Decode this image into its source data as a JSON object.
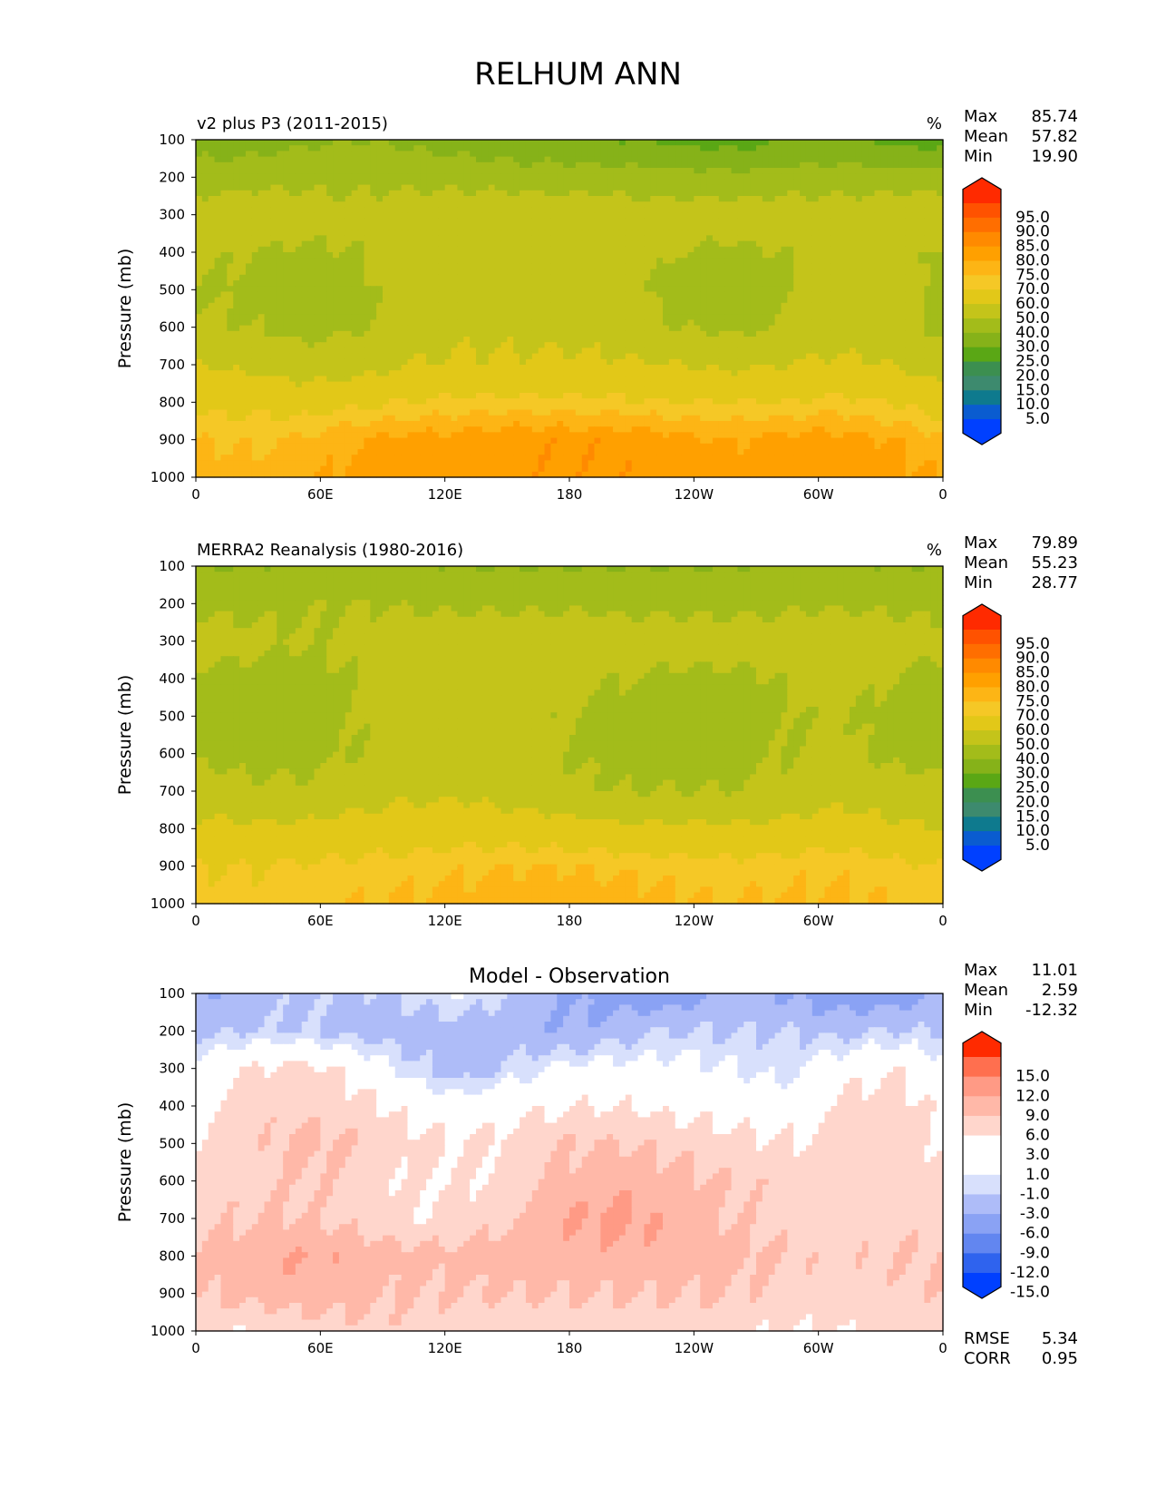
{
  "figure": {
    "title": "RELHUM ANN"
  },
  "chart_data": [
    {
      "type": "heatmap",
      "panel_title": "v2 plus P3 (2011-2015)",
      "units": "%",
      "stats": [
        {
          "label": "Max",
          "value": "85.74"
        },
        {
          "label": "Mean",
          "value": "57.82"
        },
        {
          "label": "Min",
          "value": "19.90"
        }
      ],
      "ylabel": "Pressure (mb)",
      "yticks": [
        "100",
        "200",
        "300",
        "400",
        "500",
        "600",
        "700",
        "800",
        "900",
        "1000"
      ],
      "ylim": [
        100,
        1000
      ],
      "xticks": [
        "0",
        "60E",
        "120E",
        "180",
        "120W",
        "60W",
        "0"
      ],
      "xlim": [
        0,
        360
      ],
      "colorbar": {
        "labels": [
          "95.0",
          "90.0",
          "85.0",
          "80.0",
          "75.0",
          "70.0",
          "60.0",
          "50.0",
          "40.0",
          "30.0",
          "25.0",
          "20.0",
          "15.0",
          "10.0",
          "5.0"
        ],
        "colors": [
          "#ff2a00",
          "#ff5200",
          "#ff6e00",
          "#ff8a00",
          "#ffa000",
          "#fdb515",
          "#f5c826",
          "#e2c818",
          "#c4c41a",
          "#a3bc1a",
          "#86b219",
          "#5aa715",
          "#3c8f50",
          "#3d8a6e",
          "#0e7a8e",
          "#0a5cd0",
          "#0040ff"
        ]
      },
      "field": {
        "description": "Zonal cross-section of relative humidity; dry band near 100-200 mb, moist 800-1000 mb",
        "rows_pressure": [
          100,
          200,
          300,
          400,
          500,
          600,
          700,
          800,
          900,
          1000
        ],
        "rows_values": [
          [
            35,
            35,
            38,
            40,
            38,
            35,
            33,
            32,
            30,
            28,
            25,
            30,
            32,
            28,
            25
          ],
          [
            45,
            46,
            47,
            48,
            47,
            46,
            45,
            45,
            44,
            44,
            43,
            44,
            45,
            44,
            45
          ],
          [
            55,
            58,
            55,
            52,
            56,
            58,
            58,
            57,
            56,
            55,
            55,
            56,
            55,
            57,
            58
          ],
          [
            52,
            50,
            48,
            50,
            57,
            58,
            58,
            57,
            56,
            50,
            48,
            50,
            55,
            56,
            48
          ],
          [
            50,
            48,
            47,
            47,
            55,
            58,
            58,
            57,
            55,
            45,
            44,
            48,
            55,
            55,
            46
          ],
          [
            52,
            50,
            47,
            49,
            56,
            58,
            58,
            57,
            56,
            50,
            48,
            50,
            56,
            55,
            48
          ],
          [
            60,
            58,
            55,
            56,
            60,
            61,
            61,
            62,
            61,
            60,
            58,
            60,
            62,
            60,
            55
          ],
          [
            68,
            68,
            66,
            68,
            70,
            72,
            72,
            72,
            71,
            70,
            70,
            70,
            72,
            70,
            66
          ],
          [
            75,
            74,
            76,
            80,
            82,
            82,
            84,
            84,
            84,
            82,
            80,
            82,
            82,
            80,
            76
          ],
          [
            78,
            77,
            78,
            82,
            83,
            83,
            84,
            84,
            84,
            83,
            82,
            83,
            83,
            82,
            80
          ]
        ]
      }
    },
    {
      "type": "heatmap",
      "panel_title": "MERRA2 Reanalysis (1980-2016)",
      "units": "%",
      "stats": [
        {
          "label": "Max",
          "value": "79.89"
        },
        {
          "label": "Mean",
          "value": "55.23"
        },
        {
          "label": "Min",
          "value": "28.77"
        }
      ],
      "ylabel": "Pressure (mb)",
      "yticks": [
        "100",
        "200",
        "300",
        "400",
        "500",
        "600",
        "700",
        "800",
        "900",
        "1000"
      ],
      "ylim": [
        100,
        1000
      ],
      "xticks": [
        "0",
        "60E",
        "120E",
        "180",
        "120W",
        "60W",
        "0"
      ],
      "xlim": [
        0,
        360
      ],
      "colorbar": {
        "labels": [
          "95.0",
          "90.0",
          "85.0",
          "80.0",
          "75.0",
          "70.0",
          "60.0",
          "50.0",
          "40.0",
          "30.0",
          "25.0",
          "20.0",
          "15.0",
          "10.0",
          "5.0"
        ],
        "colors": [
          "#ff2a00",
          "#ff5200",
          "#ff6e00",
          "#ff8a00",
          "#ffa000",
          "#fdb515",
          "#f5c826",
          "#e2c818",
          "#c4c41a",
          "#a3bc1a",
          "#86b219",
          "#5aa715",
          "#3c8f50",
          "#3d8a6e",
          "#0e7a8e",
          "#0a5cd0",
          "#0040ff"
        ]
      },
      "field": {
        "description": "Reanalysis zonal cross-section of relative humidity",
        "rows_pressure": [
          100,
          200,
          300,
          400,
          500,
          600,
          700,
          800,
          900,
          1000
        ],
        "rows_values": [
          [
            40,
            40,
            41,
            42,
            41,
            40,
            40,
            40,
            40,
            40,
            40,
            41,
            41,
            40,
            40
          ],
          [
            48,
            48,
            49,
            50,
            49,
            48,
            48,
            48,
            48,
            48,
            48,
            48,
            49,
            48,
            48
          ],
          [
            55,
            52,
            50,
            52,
            55,
            56,
            56,
            56,
            55,
            54,
            54,
            55,
            56,
            55,
            52
          ],
          [
            48,
            47,
            47,
            50,
            55,
            56,
            55,
            53,
            50,
            48,
            48,
            50,
            54,
            50,
            47
          ],
          [
            47,
            46,
            46,
            50,
            55,
            55,
            53,
            50,
            47,
            45,
            46,
            49,
            52,
            47,
            46
          ],
          [
            48,
            47,
            47,
            50,
            55,
            55,
            53,
            50,
            47,
            46,
            47,
            50,
            52,
            48,
            47
          ],
          [
            55,
            52,
            52,
            55,
            58,
            58,
            56,
            52,
            50,
            50,
            50,
            52,
            56,
            55,
            52
          ],
          [
            62,
            62,
            62,
            64,
            65,
            66,
            65,
            64,
            62,
            62,
            62,
            63,
            65,
            62,
            60
          ],
          [
            70,
            70,
            71,
            72,
            73,
            74,
            75,
            75,
            74,
            73,
            72,
            73,
            74,
            72,
            70
          ],
          [
            72,
            72,
            73,
            75,
            76,
            77,
            78,
            78,
            77,
            76,
            75,
            76,
            76,
            75,
            73
          ]
        ]
      }
    },
    {
      "type": "heatmap",
      "panel_title": "Model - Observation",
      "units": "",
      "stats": [
        {
          "label": "Max",
          "value": "11.01"
        },
        {
          "label": "Mean",
          "value": "2.59"
        },
        {
          "label": "Min",
          "value": "-12.32"
        }
      ],
      "extra_stats": [
        {
          "label": "RMSE",
          "value": "5.34"
        },
        {
          "label": "CORR",
          "value": "0.95"
        }
      ],
      "ylabel": "Pressure (mb)",
      "yticks": [
        "100",
        "200",
        "300",
        "400",
        "500",
        "600",
        "700",
        "800",
        "900",
        "1000"
      ],
      "ylim": [
        100,
        1000
      ],
      "xticks": [
        "0",
        "60E",
        "120E",
        "180",
        "120W",
        "60W",
        "0"
      ],
      "xlim": [
        0,
        360
      ],
      "colorbar": {
        "labels": [
          "15.0",
          "12.0",
          "9.0",
          "6.0",
          "3.0",
          "1.0",
          "-1.0",
          "-3.0",
          "-6.0",
          "-9.0",
          "-12.0",
          "-15.0"
        ],
        "colors": [
          "#ff2a00",
          "#ff6f4f",
          "#ff9a85",
          "#ffb8a8",
          "#ffd6cc",
          "#ffffff",
          "#ffffff",
          "#d8e0fc",
          "#aebcf8",
          "#8aa2f4",
          "#6286f0",
          "#2f63ee",
          "#0040ff"
        ]
      },
      "field": {
        "description": "Difference field; negative near tropopause (100-300 mb), positive below",
        "rows_pressure": [
          100,
          200,
          300,
          400,
          500,
          600,
          700,
          800,
          900,
          1000
        ],
        "rows_values": [
          [
            -6,
            -5,
            -3,
            -4,
            -2,
            -1,
            -4,
            -6,
            -8,
            -8,
            -5,
            -6,
            -8,
            -8,
            -6
          ],
          [
            -4,
            -3,
            -3,
            -4,
            -5,
            -4,
            -5,
            -6,
            -4,
            -3,
            -3,
            -3,
            -4,
            -3,
            -3
          ],
          [
            0,
            3,
            4,
            2,
            -2,
            -5,
            -2,
            0,
            0,
            0,
            -1,
            -2,
            1,
            3,
            0
          ],
          [
            2,
            5,
            5,
            4,
            2,
            1,
            2,
            3,
            3,
            2,
            2,
            1,
            3,
            5,
            2
          ],
          [
            3,
            5,
            7,
            6,
            4,
            3,
            4,
            6,
            6,
            5,
            4,
            3,
            4,
            5,
            3
          ],
          [
            4,
            5,
            6,
            5,
            3,
            3,
            4,
            7,
            8,
            7,
            6,
            5,
            4,
            4,
            4
          ],
          [
            5,
            6,
            6,
            5,
            3,
            4,
            6,
            9,
            10,
            8,
            6,
            5,
            4,
            5,
            5
          ],
          [
            6,
            8,
            9,
            8,
            7,
            7,
            8,
            8,
            8,
            8,
            7,
            6,
            5,
            6,
            6
          ],
          [
            6,
            7,
            8,
            7,
            6,
            6,
            6,
            6,
            6,
            6,
            6,
            5,
            5,
            5,
            6
          ],
          [
            4,
            3,
            4,
            5,
            5,
            4,
            4,
            4,
            4,
            4,
            4,
            3,
            3,
            4,
            4
          ]
        ]
      }
    }
  ]
}
